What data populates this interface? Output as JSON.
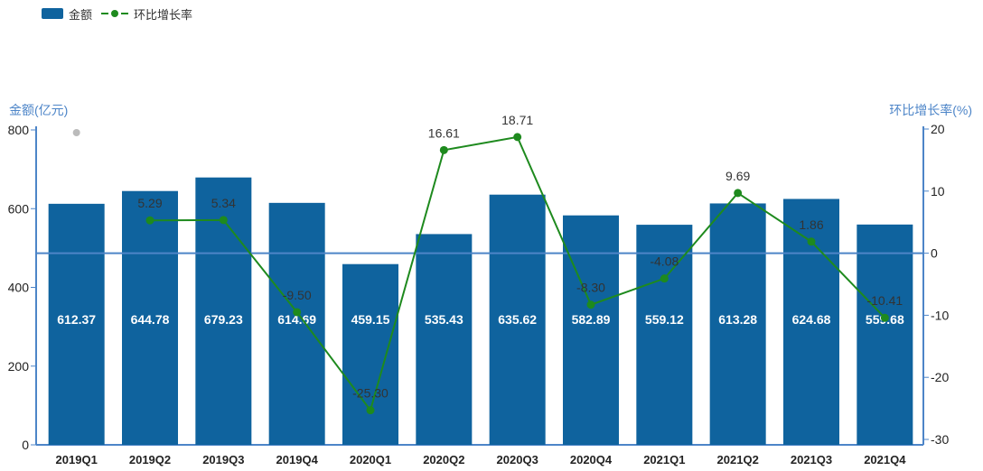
{
  "legend": {
    "bar_label": "金额",
    "line_label": "环比增长率"
  },
  "colors": {
    "bar": "#0f639e",
    "line": "#1e8a1e",
    "axis": "#4d85c8"
  },
  "chart_data": {
    "type": "bar",
    "categories": [
      "2019Q1",
      "2019Q2",
      "2019Q3",
      "2019Q4",
      "2020Q1",
      "2020Q2",
      "2020Q3",
      "2020Q4",
      "2021Q1",
      "2021Q2",
      "2021Q3",
      "2021Q4"
    ],
    "series": [
      {
        "name": "金额",
        "type": "bar",
        "axis": "left",
        "values": [
          612.37,
          644.78,
          679.23,
          614.69,
          459.15,
          535.43,
          635.62,
          582.89,
          559.12,
          613.28,
          624.68,
          559.68
        ],
        "labels": [
          "612.37",
          "644.78",
          "679.23",
          "614.69",
          "459.15",
          "535.43",
          "635.62",
          "582.89",
          "559.12",
          "613.28",
          "624.68",
          "559.68"
        ]
      },
      {
        "name": "环比增长率",
        "type": "line",
        "axis": "right",
        "values": [
          null,
          5.29,
          5.34,
          -9.5,
          -25.3,
          16.61,
          18.71,
          -8.3,
          -4.08,
          9.69,
          1.86,
          -10.41
        ],
        "labels": [
          "",
          "5.29",
          "5.34",
          "-9.50",
          "-25.30",
          "16.61",
          "18.71",
          "-8.30",
          "-4.08",
          "9.69",
          "1.86",
          "-10.41"
        ]
      }
    ],
    "y_left": {
      "label": "金额(亿元)",
      "ylim": [
        0,
        800
      ],
      "ticks": [
        0,
        200,
        400,
        600,
        800
      ]
    },
    "y_right": {
      "label": "环比增长率(%)",
      "ylim": [
        -30,
        20
      ],
      "ticks": [
        -30,
        -20,
        -10,
        0,
        10,
        20
      ]
    },
    "legend_position": "top-left",
    "grid": false
  }
}
